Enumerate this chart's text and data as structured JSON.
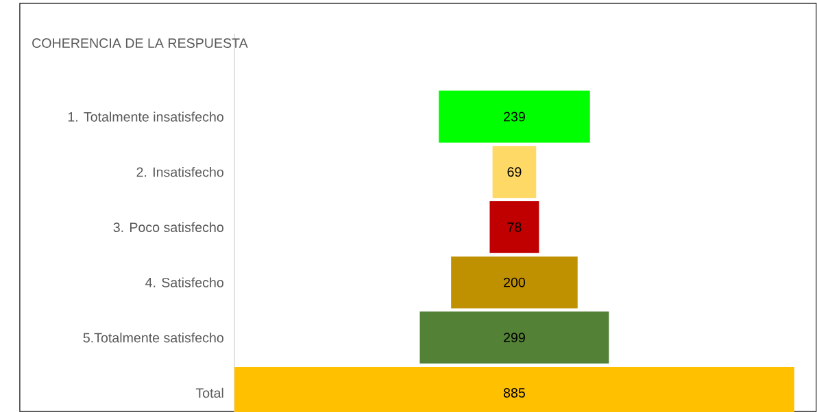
{
  "chart_data": {
    "type": "other",
    "title": "COHERENCIA DE LA RESPUESTA",
    "categories": [
      "1. Totalmente insatisfecho",
      "2. Insatisfecho",
      "3. Poco satisfecho",
      "4. Satisfecho",
      "5.Totalmente satisfecho",
      "Total"
    ],
    "values": [
      239,
      69,
      78,
      200,
      299,
      885
    ],
    "colors": [
      "#00ff00",
      "#ffd966",
      "#c00000",
      "#bf9000",
      "#538135",
      "#ffc000"
    ],
    "data_labels": true
  }
}
